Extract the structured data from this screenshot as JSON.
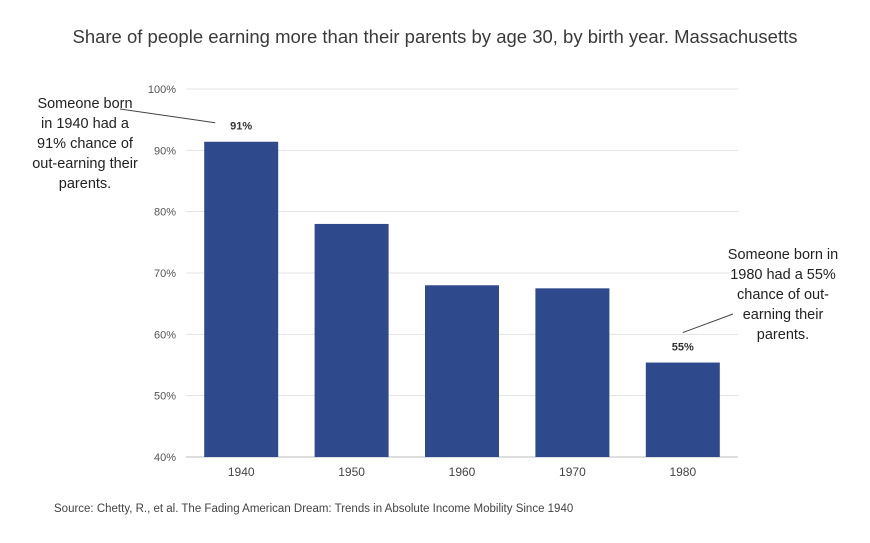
{
  "chart_data": {
    "type": "bar",
    "title": "Share of people earning more than their parents by age 30, by birth year. Massachusetts",
    "categories": [
      "1940",
      "1950",
      "1960",
      "1970",
      "1980"
    ],
    "values": [
      91.4,
      78,
      68,
      67.5,
      55.4
    ],
    "data_labels": [
      "91%",
      "",
      "",
      "",
      "55%"
    ],
    "ylim": [
      40,
      100
    ],
    "yticks": [
      40,
      50,
      60,
      70,
      80,
      90,
      100
    ],
    "ytick_labels": [
      "40%",
      "50%",
      "60%",
      "70%",
      "80%",
      "90%",
      "100%"
    ],
    "xlabel": "",
    "ylabel": "",
    "grid": true,
    "legend": "none",
    "bar_color": "#2f4a8c",
    "annotations": [
      {
        "text": "Someone born in 1940 had a 91% chance of out-earning their parents.",
        "target": "1940"
      },
      {
        "text": "Someone born in 1980 had a 55% chance of out-earning their parents.",
        "target": "1980"
      }
    ],
    "source": "Source: Chetty, R., et al. The Fading American Dream: Trends in Absolute Income Mobility Since 1940"
  }
}
